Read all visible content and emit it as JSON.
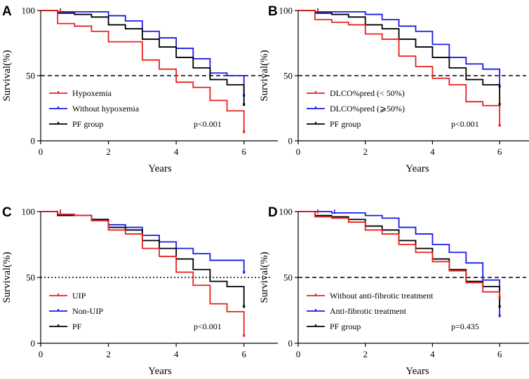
{
  "chart_data": [
    {
      "type": "line",
      "panel": "A",
      "xlabel": "Years",
      "ylabel": "Survival(%)",
      "xlim": [
        0,
        7
      ],
      "ylim": [
        0,
        100
      ],
      "xticks": [
        "0",
        "2",
        "4",
        "6"
      ],
      "yticks": [
        "0",
        "50",
        "100"
      ],
      "reference_line": {
        "y": 50,
        "style": "dashed"
      },
      "legend_position": "bottom-left",
      "pvalue": "p<0.001",
      "series": [
        {
          "name": "Hypoxemia",
          "color": "#e8211d",
          "x": [
            0,
            0.5,
            1,
            1.5,
            2,
            2.5,
            3,
            3.5,
            4,
            4.5,
            5,
            5.5,
            6
          ],
          "y": [
            100,
            90,
            88,
            84,
            76,
            76,
            62,
            55,
            45,
            41,
            31,
            23,
            8
          ]
        },
        {
          "name": "Without hypoxemia",
          "color": "#1a1ae6",
          "x": [
            0,
            0.5,
            2,
            2.5,
            3,
            3.5,
            4,
            4.5,
            5,
            5.5,
            6
          ],
          "y": [
            100,
            99,
            96,
            92,
            84,
            79,
            71,
            63,
            52,
            50,
            36
          ]
        },
        {
          "name": "PF group",
          "color": "#000000",
          "x": [
            0,
            0.5,
            1,
            1.5,
            2,
            2.5,
            3,
            3.5,
            4,
            4.5,
            5,
            5.5,
            6
          ],
          "y": [
            100,
            98,
            97,
            95,
            89,
            86,
            78,
            72,
            64,
            56,
            47,
            43,
            29
          ]
        }
      ]
    },
    {
      "type": "line",
      "panel": "B",
      "xlabel": "Years",
      "ylabel": "Survival(%)",
      "xlim": [
        0,
        7
      ],
      "ylim": [
        0,
        100
      ],
      "xticks": [
        "0",
        "2",
        "4",
        "6"
      ],
      "yticks": [
        "0",
        "50",
        "100"
      ],
      "reference_line": {
        "y": 50,
        "style": "dashed"
      },
      "legend_position": "bottom-left",
      "pvalue": "p<0.001",
      "series": [
        {
          "name": "DLCO%pred (< 50%)",
          "color": "#e8211d",
          "x": [
            0,
            0.5,
            1,
            1.5,
            2,
            2.5,
            3,
            3.5,
            4,
            4.5,
            5,
            5.5,
            6
          ],
          "y": [
            100,
            93,
            91,
            89,
            82,
            78,
            65,
            57,
            48,
            43,
            30,
            27,
            13
          ]
        },
        {
          "name": "DLCO%pred (⩾50%)",
          "color": "#1a1ae6",
          "x": [
            0,
            0.5,
            2,
            2.5,
            3,
            3.5,
            4,
            4.5,
            5,
            5.5,
            6
          ],
          "y": [
            100,
            99,
            97,
            93,
            88,
            84,
            74,
            64,
            59,
            55,
            43
          ]
        },
        {
          "name": "PF group",
          "color": "#000000",
          "x": [
            0,
            0.5,
            1,
            1.5,
            2,
            2.5,
            3,
            3.5,
            4,
            4.5,
            5,
            5.5,
            6
          ],
          "y": [
            100,
            98,
            97,
            95,
            89,
            86,
            78,
            72,
            64,
            56,
            47,
            43,
            29
          ]
        }
      ]
    },
    {
      "type": "line",
      "panel": "C",
      "xlabel": "Years",
      "ylabel": "Survival(%)",
      "xlim": [
        0,
        7
      ],
      "ylim": [
        0,
        100
      ],
      "xticks": [
        "0",
        "2",
        "4",
        "6"
      ],
      "yticks": [
        "0",
        "50",
        "100"
      ],
      "reference_line": {
        "y": 50,
        "style": "dotted"
      },
      "legend_position": "bottom-left",
      "pvalue": "p<0.001",
      "series": [
        {
          "name": "UIP",
          "color": "#e8211d",
          "x": [
            0,
            0.5,
            1,
            1.5,
            2,
            2.5,
            3,
            3.5,
            4,
            4.5,
            5,
            5.5,
            6
          ],
          "y": [
            100,
            98,
            97,
            93,
            86,
            83,
            72,
            66,
            54,
            44,
            30,
            24,
            7
          ]
        },
        {
          "name": "Non-UIP",
          "color": "#1a1ae6",
          "x": [
            0,
            0.5,
            1.5,
            2,
            2.5,
            3,
            3.5,
            4,
            4.5,
            5,
            5.5,
            6
          ],
          "y": [
            100,
            97,
            94,
            90,
            88,
            82,
            77,
            72,
            68,
            63,
            63,
            55
          ]
        },
        {
          "name": "PF",
          "color": "#000000",
          "x": [
            0,
            0.5,
            1.5,
            2,
            2.5,
            3,
            3.5,
            4,
            4.5,
            5,
            5.5,
            6
          ],
          "y": [
            100,
            97,
            94,
            88,
            86,
            78,
            72,
            64,
            56,
            47,
            43,
            29
          ]
        }
      ]
    },
    {
      "type": "line",
      "panel": "D",
      "xlabel": "Years",
      "ylabel": "Survival(%)",
      "xlim": [
        0,
        7
      ],
      "ylim": [
        0,
        100
      ],
      "xticks": [
        "0",
        "2",
        "4",
        "6"
      ],
      "yticks": [
        "0",
        "50",
        "100"
      ],
      "reference_line": {
        "y": 50,
        "style": "dashed"
      },
      "legend_position": "bottom-left",
      "pvalue": "p=0.435",
      "series": [
        {
          "name": "Without anti-fibrotic treatment",
          "color": "#e8211d",
          "x": [
            0,
            0.5,
            1,
            1.5,
            2,
            2.5,
            3,
            3.5,
            4,
            4.5,
            5,
            5.5,
            6
          ],
          "y": [
            100,
            96,
            95,
            92,
            86,
            83,
            75,
            69,
            62,
            55,
            46,
            39,
            36
          ]
        },
        {
          "name": "Anti-fibrotic treatment",
          "color": "#1a1ae6",
          "x": [
            0,
            1,
            2,
            2.5,
            3,
            3.5,
            4,
            4.5,
            5,
            5.5,
            6
          ],
          "y": [
            100,
            99,
            97,
            95,
            88,
            83,
            75,
            69,
            61,
            48,
            22
          ]
        },
        {
          "name": "PF group",
          "color": "#000000",
          "x": [
            0,
            0.5,
            1,
            1.5,
            2,
            2.5,
            3,
            3.5,
            4,
            4.5,
            5,
            5.5,
            6
          ],
          "y": [
            100,
            97,
            96,
            94,
            89,
            86,
            78,
            72,
            64,
            56,
            47,
            43,
            29
          ]
        }
      ]
    }
  ]
}
